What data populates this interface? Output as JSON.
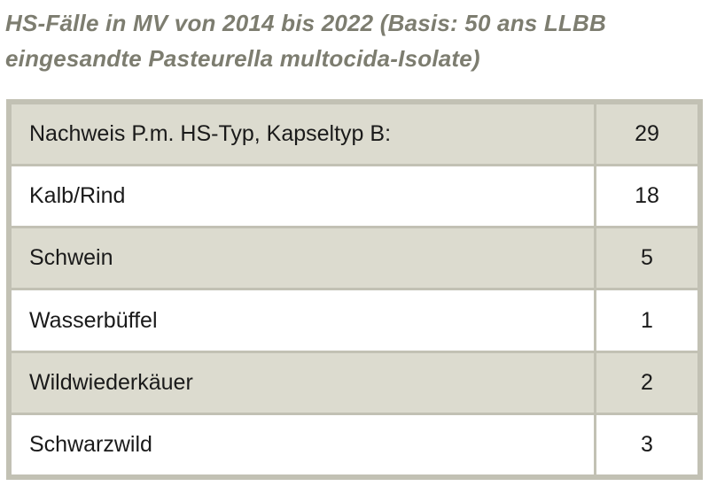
{
  "title": {
    "line1": "HS-Fälle in MV von 2014 bis 2022 (Basis: 50 ans LLBB",
    "line2": "eingesandte Pasteurella multocida-Isolate)"
  },
  "table": {
    "rows": [
      {
        "label": "Nachweis P.m. HS-Typ, Kapseltyp B:",
        "value": "29"
      },
      {
        "label": "Kalb/Rind",
        "value": "18"
      },
      {
        "label": "Schwein",
        "value": "5"
      },
      {
        "label": "Wasserbüffel",
        "value": "1"
      },
      {
        "label": "Wildwiederkäuer",
        "value": "2"
      },
      {
        "label": "Schwarzwild",
        "value": "3"
      }
    ]
  },
  "colors": {
    "title": "#7d7d70",
    "border": "#c2c1b4",
    "shaded_row": "#dcdbcf",
    "plain_row": "#ffffff"
  }
}
